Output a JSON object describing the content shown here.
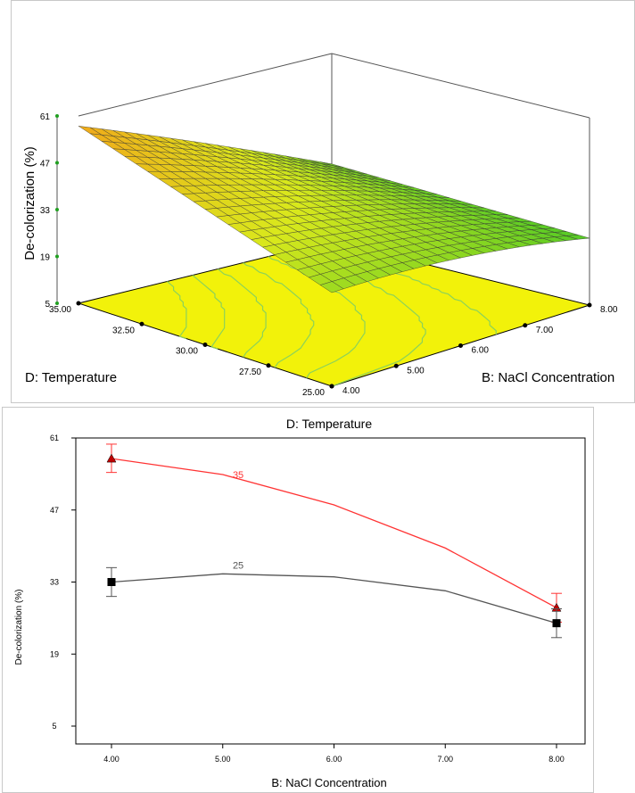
{
  "chart_data": [
    {
      "type": "surface3d",
      "zlabel": "De-colorization (%)",
      "xlabel": "B: NaCl Concentration",
      "ylabel": "D: Temperature",
      "x_ticks": [
        "4.00",
        "5.00",
        "6.00",
        "7.00",
        "8.00"
      ],
      "y_ticks": [
        "25.00",
        "27.50",
        "30.00",
        "32.50",
        "35.00"
      ],
      "z_ticks": [
        "5",
        "19",
        "33",
        "47",
        "61"
      ],
      "xlim": [
        4,
        8
      ],
      "ylim": [
        25,
        35
      ],
      "zlim": [
        5,
        61
      ],
      "corner_values": [
        {
          "x": 4,
          "y": 35,
          "z": 58
        },
        {
          "x": 8,
          "y": 35,
          "z": 28
        },
        {
          "x": 4,
          "y": 25,
          "z": 33
        },
        {
          "x": 8,
          "y": 25,
          "z": 25
        }
      ],
      "surface_colors": {
        "high": "#f3a21a",
        "mid": "#d9e81c",
        "low": "#28c028"
      },
      "contour_floor_color": "#f2f20a"
    },
    {
      "type": "line",
      "title": "D: Temperature",
      "xlabel": "B: NaCl Concentration",
      "ylabel": "De-colorization (%)",
      "x_ticks": [
        "4.00",
        "5.00",
        "6.00",
        "7.00",
        "8.00"
      ],
      "y_ticks": [
        "5",
        "19",
        "33",
        "47",
        "61"
      ],
      "xlim": [
        4,
        8
      ],
      "ylim": [
        5,
        61
      ],
      "series": [
        {
          "name": "35",
          "color": "#ff3333",
          "marker": "triangle",
          "marker_color": "#c00000",
          "points": [
            {
              "x": 4,
              "y": 57
            },
            {
              "x": 8,
              "y": 28
            }
          ],
          "curve": [
            [
              4.0,
              57.0
            ],
            [
              5.0,
              53.9
            ],
            [
              6.0,
              48.0
            ],
            [
              7.0,
              39.6
            ],
            [
              8.0,
              28.0
            ]
          ],
          "error_bars": [
            [
              54.3,
              59.8
            ],
            [
              25.2,
              30.8
            ]
          ]
        },
        {
          "name": "25",
          "color": "#555555",
          "marker": "square",
          "marker_color": "#000000",
          "points": [
            {
              "x": 4,
              "y": 33
            },
            {
              "x": 8,
              "y": 25
            }
          ],
          "curve": [
            [
              4.0,
              33.0
            ],
            [
              5.0,
              34.6
            ],
            [
              6.0,
              34.0
            ],
            [
              7.0,
              31.3
            ],
            [
              8.0,
              25.0
            ]
          ],
          "error_bars": [
            [
              30.2,
              35.8
            ],
            [
              22.2,
              27.8
            ]
          ]
        }
      ]
    }
  ]
}
